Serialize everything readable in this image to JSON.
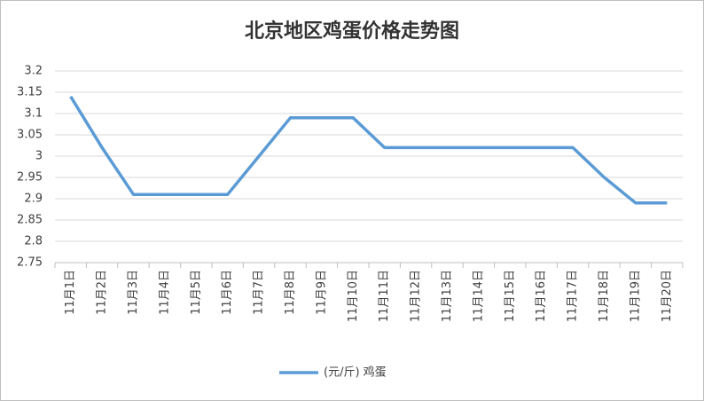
{
  "chart_data": {
    "type": "line",
    "title": "北京地区鸡蛋价格走势图",
    "categories": [
      "11月1日",
      "11月2日",
      "11月3日",
      "11月4日",
      "11月5日",
      "11月6日",
      "11月7日",
      "11月8日",
      "11月9日",
      "11月10日",
      "11月11日",
      "11月12日",
      "11月13日",
      "11月14日",
      "11月15日",
      "11月16日",
      "11月17日",
      "11月18日",
      "11月19日",
      "11月20日"
    ],
    "series": [
      {
        "name": "(元/斤) 鸡蛋",
        "color": "#5b9bd5",
        "values": [
          3.14,
          3.02,
          2.91,
          2.91,
          2.91,
          2.91,
          3.0,
          3.09,
          3.09,
          3.09,
          3.02,
          3.02,
          3.02,
          3.02,
          3.02,
          3.02,
          3.02,
          2.95,
          2.89,
          2.89
        ]
      }
    ],
    "ylim": [
      2.75,
      3.2
    ],
    "yticks": [
      2.75,
      2.8,
      2.85,
      2.9,
      2.95,
      3,
      3.05,
      3.1,
      3.15,
      3.2
    ],
    "grid": true,
    "legend": "bottom"
  }
}
